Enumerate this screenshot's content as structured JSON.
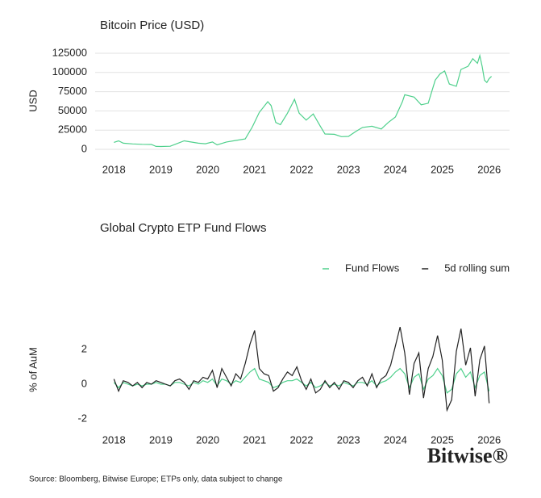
{
  "chart_data": [
    {
      "type": "line",
      "title": "Bitcoin Price (USD)",
      "y_label": "USD",
      "grid": true,
      "xlim": [
        2017.6,
        2026.4
      ],
      "xticks": [
        2018,
        2019,
        2020,
        2021,
        2022,
        2023,
        2024,
        2025,
        2026
      ],
      "ylim": [
        -8000,
        135000
      ],
      "yticks": [
        0,
        25000,
        50000,
        75000,
        100000,
        125000
      ],
      "x": [
        2018.0,
        2018.1,
        2018.2,
        2018.4,
        2018.6,
        2018.8,
        2018.9,
        2019.0,
        2019.2,
        2019.35,
        2019.5,
        2019.6,
        2019.8,
        2019.95,
        2020.1,
        2020.2,
        2020.4,
        2020.6,
        2020.8,
        2020.95,
        2021.1,
        2021.28,
        2021.35,
        2021.45,
        2021.55,
        2021.7,
        2021.85,
        2021.95,
        2022.1,
        2022.25,
        2022.4,
        2022.5,
        2022.7,
        2022.85,
        2023.0,
        2023.15,
        2023.3,
        2023.5,
        2023.7,
        2023.85,
        2024.0,
        2024.15,
        2024.2,
        2024.4,
        2024.55,
        2024.7,
        2024.85,
        2024.95,
        2025.05,
        2025.15,
        2025.3,
        2025.4,
        2025.55,
        2025.65,
        2025.75,
        2025.8,
        2025.85,
        2025.9,
        2025.95,
        2026.0,
        2026.05
      ],
      "series": [
        {
          "name": "Bitcoin",
          "color": "#4fd08c",
          "values": [
            9000,
            11000,
            8000,
            7000,
            6500,
            6300,
            3800,
            3700,
            4000,
            7500,
            11000,
            10000,
            8000,
            7200,
            9500,
            5800,
            9500,
            11500,
            13500,
            29000,
            48000,
            62000,
            57000,
            35000,
            32000,
            47000,
            65000,
            47000,
            38000,
            46000,
            30000,
            20000,
            19500,
            16500,
            16800,
            23000,
            28500,
            30000,
            26500,
            35000,
            42000,
            62000,
            71000,
            68000,
            58000,
            60000,
            90000,
            98000,
            102000,
            85000,
            82000,
            104000,
            108000,
            118000,
            112000,
            122000,
            108000,
            90000,
            87000,
            92000,
            95000
          ]
        }
      ]
    },
    {
      "type": "line",
      "title": "Global Crypto ETP Fund Flows",
      "y_label": "% of AuM",
      "grid": false,
      "legend": "top-right",
      "xlim": [
        2017.6,
        2026.4
      ],
      "xticks": [
        2018,
        2019,
        2020,
        2021,
        2022,
        2023,
        2024,
        2025,
        2026
      ],
      "ylim": [
        -2.2,
        3.6
      ],
      "yticks": [
        -2,
        0,
        2
      ],
      "x": [
        2018.0,
        2018.1,
        2018.2,
        2018.3,
        2018.4,
        2018.5,
        2018.6,
        2018.7,
        2018.8,
        2018.9,
        2019.0,
        2019.1,
        2019.2,
        2019.3,
        2019.4,
        2019.5,
        2019.6,
        2019.7,
        2019.8,
        2019.9,
        2020.0,
        2020.1,
        2020.2,
        2020.3,
        2020.4,
        2020.5,
        2020.6,
        2020.7,
        2020.8,
        2020.9,
        2021.0,
        2021.1,
        2021.2,
        2021.3,
        2021.4,
        2021.5,
        2021.6,
        2021.7,
        2021.8,
        2021.9,
        2022.0,
        2022.1,
        2022.2,
        2022.3,
        2022.4,
        2022.5,
        2022.6,
        2022.7,
        2022.8,
        2022.9,
        2023.0,
        2023.1,
        2023.2,
        2023.3,
        2023.4,
        2023.5,
        2023.6,
        2023.7,
        2023.8,
        2023.9,
        2024.0,
        2024.1,
        2024.2,
        2024.3,
        2024.4,
        2024.5,
        2024.6,
        2024.7,
        2024.8,
        2024.9,
        2025.0,
        2025.1,
        2025.2,
        2025.3,
        2025.4,
        2025.5,
        2025.6,
        2025.7,
        2025.8,
        2025.9,
        2026.0
      ],
      "series": [
        {
          "name": "Fund Flows",
          "color": "#4fd08c",
          "values": [
            0.1,
            -0.2,
            0.1,
            0,
            -0.1,
            0,
            -0.1,
            0,
            0,
            0.1,
            0,
            0,
            -0.1,
            0.1,
            0.1,
            0,
            -0.1,
            0.1,
            0,
            0.2,
            0.1,
            0.3,
            -0.1,
            0.3,
            0.2,
            0,
            0.2,
            0.1,
            0.4,
            0.7,
            0.9,
            0.3,
            0.2,
            0.1,
            -0.2,
            -0.1,
            0.1,
            0.2,
            0.2,
            0.3,
            0.1,
            -0.1,
            0.1,
            -0.2,
            -0.1,
            0.1,
            -0.1,
            0,
            -0.1,
            0.1,
            0,
            -0.1,
            0.1,
            0.1,
            0,
            0.2,
            -0.1,
            0.1,
            0.2,
            0.4,
            0.7,
            0.9,
            0.6,
            -0.2,
            0.4,
            0.6,
            -0.3,
            0.3,
            0.5,
            0.9,
            0.5,
            -0.5,
            -0.3,
            0.6,
            0.9,
            0.4,
            0.7,
            -0.2,
            0.5,
            0.7,
            -0.4
          ]
        },
        {
          "name": "5d rolling sum",
          "color": "#222222",
          "values": [
            0.3,
            -0.4,
            0.2,
            0.1,
            -0.1,
            0.1,
            -0.2,
            0.1,
            0,
            0.2,
            0.1,
            0,
            -0.1,
            0.2,
            0.3,
            0.1,
            -0.3,
            0.2,
            0.1,
            0.4,
            0.3,
            0.8,
            -0.2,
            0.9,
            0.4,
            -0.1,
            0.6,
            0.3,
            1.2,
            2.3,
            3.1,
            0.9,
            0.6,
            0.5,
            -0.4,
            -0.2,
            0.3,
            0.7,
            0.5,
            1.0,
            0.2,
            -0.3,
            0.3,
            -0.5,
            -0.3,
            0.2,
            -0.2,
            0.1,
            -0.3,
            0.2,
            0.1,
            -0.2,
            0.2,
            0.4,
            -0.1,
            0.6,
            -0.2,
            0.3,
            0.5,
            1.1,
            2.2,
            3.3,
            1.8,
            -0.6,
            1.2,
            1.8,
            -0.8,
            0.9,
            1.6,
            2.8,
            1.4,
            -1.5,
            -0.9,
            1.9,
            3.2,
            1.1,
            2.1,
            -0.7,
            1.4,
            2.2,
            -1.1
          ]
        }
      ]
    }
  ],
  "footer": {
    "source": "Source: Bloomberg, Bitwise Europe; ETPs only, data subject to change",
    "logo": "Bitwise®"
  }
}
